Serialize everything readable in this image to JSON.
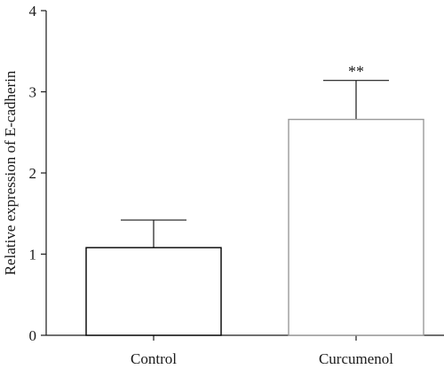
{
  "chart_data": {
    "type": "bar",
    "categories": [
      "Control",
      "Curcumenol"
    ],
    "values": [
      1.08,
      2.66
    ],
    "errors": [
      0.34,
      0.48
    ],
    "annotations": [
      "",
      "**"
    ],
    "bar_colors": [
      "#000000",
      "#999999"
    ],
    "title": "",
    "xlabel": "",
    "ylabel": "Relative expression of E-cadherin",
    "ylim": [
      0,
      4
    ],
    "yticks": [
      0,
      1,
      2,
      3,
      4
    ],
    "grid": false,
    "legend": "none"
  }
}
